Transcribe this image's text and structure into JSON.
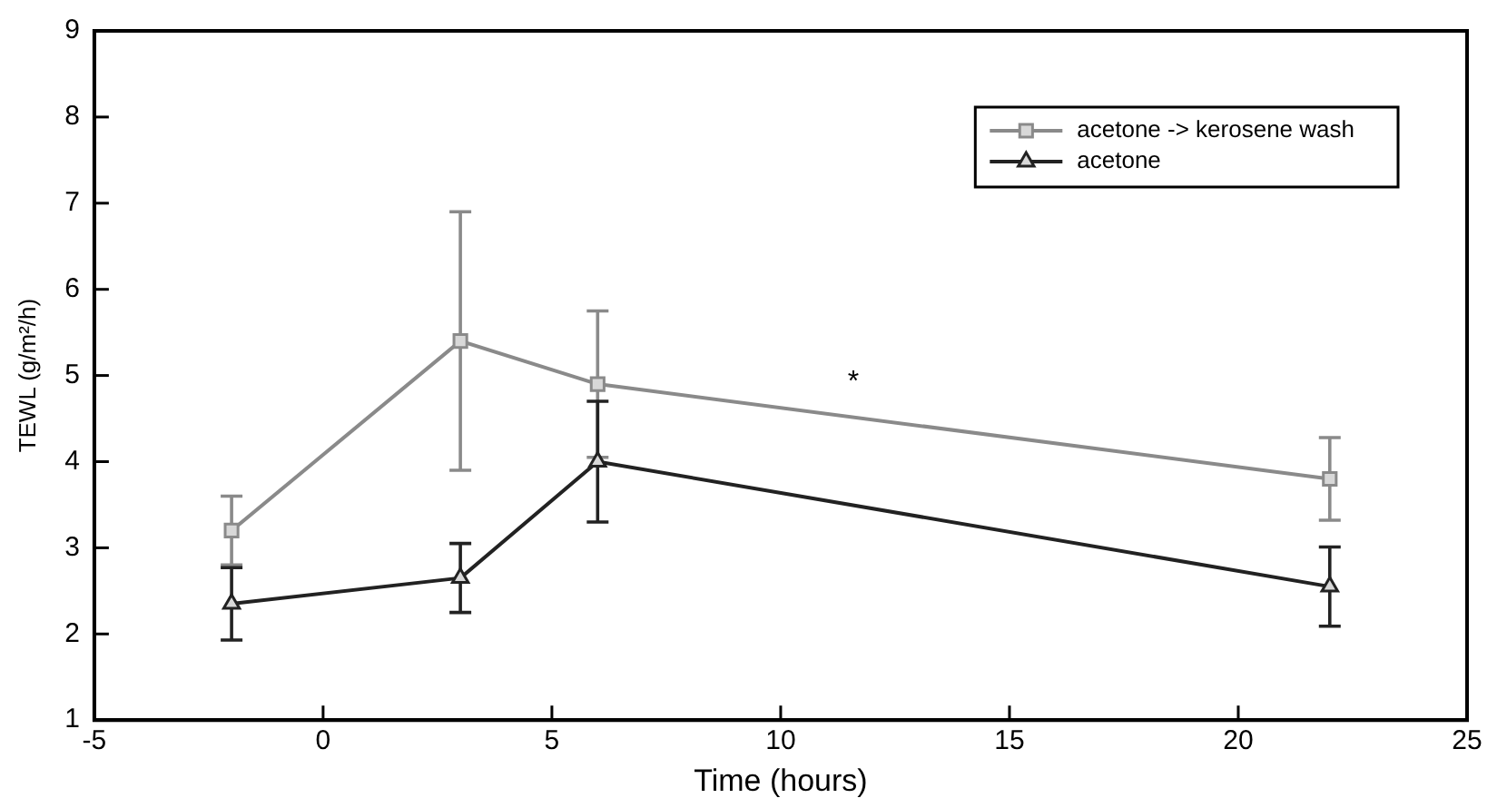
{
  "chart_data": {
    "type": "line",
    "xlabel": "Time (hours)",
    "ylabel": "TEWL (g/m²/h)",
    "xlim": [
      -5,
      25
    ],
    "xticks": [
      -5,
      0,
      5,
      10,
      15,
      20,
      25
    ],
    "ylim": [
      1,
      9
    ],
    "yticks": [
      1,
      2,
      3,
      4,
      5,
      6,
      7,
      8,
      9
    ],
    "grid": false,
    "legend": "top right",
    "line_style": "solid",
    "series": [
      {
        "name": "acetone -> kerosene wash",
        "color": "#8a8a8a",
        "marker": "square",
        "x": [
          -2,
          3,
          6,
          22
        ],
        "values": [
          3.2,
          5.4,
          4.9,
          3.8
        ],
        "errors": [
          0.4,
          1.5,
          0.85,
          0.48
        ]
      },
      {
        "name": "acetone",
        "color": "#222222",
        "marker": "triangle",
        "x": [
          -2,
          3,
          6,
          22
        ],
        "values": [
          2.35,
          2.65,
          4.0,
          2.55
        ],
        "errors": [
          0.42,
          0.4,
          0.7,
          0.46
        ]
      }
    ],
    "annotations": [
      "*"
    ]
  }
}
